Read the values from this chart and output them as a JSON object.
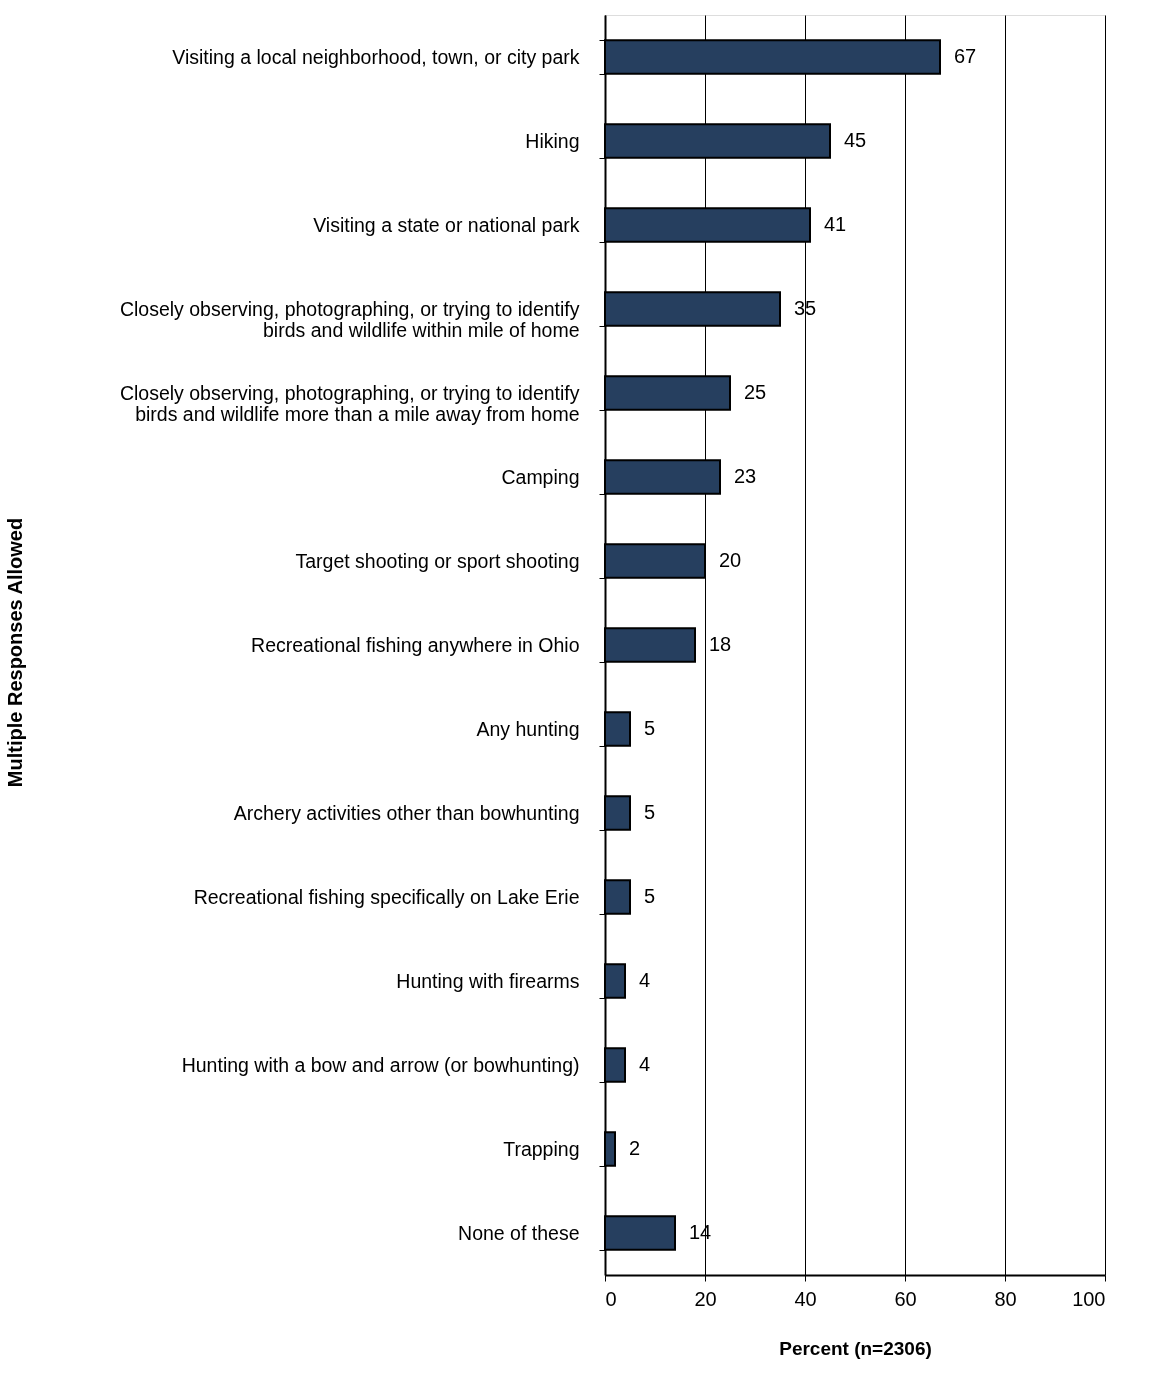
{
  "chart_data": {
    "type": "bar",
    "orientation": "horizontal",
    "categories": [
      "Visiting a local neighborhood, town, or city park",
      "Hiking",
      "Visiting a state or national park",
      "Closely observing, photographing, or trying to identify birds and wildlife within mile of home",
      "Closely observing, photographing, or trying to identify birds and wildlife more than a mile away from home",
      "Camping",
      "Target shooting or sport shooting",
      "Recreational fishing anywhere in Ohio",
      "Any hunting",
      "Archery activities other than bowhunting",
      "Recreational fishing specifically on Lake Erie",
      "Hunting with firearms",
      "Hunting with a bow and arrow (or bowhunting)",
      "Trapping",
      "None of these"
    ],
    "values": [
      67,
      45,
      41,
      35,
      25,
      23,
      20,
      18,
      5,
      5,
      5,
      4,
      4,
      2,
      14
    ],
    "color": "#263f5f",
    "data_labels": true,
    "xlim": [
      0,
      100
    ],
    "xticks": [
      0,
      20,
      40,
      60,
      80,
      100
    ],
    "xlabel": "Percent (n=2306)",
    "ylabel": "Multiple Responses Allowed",
    "grid": "x"
  }
}
